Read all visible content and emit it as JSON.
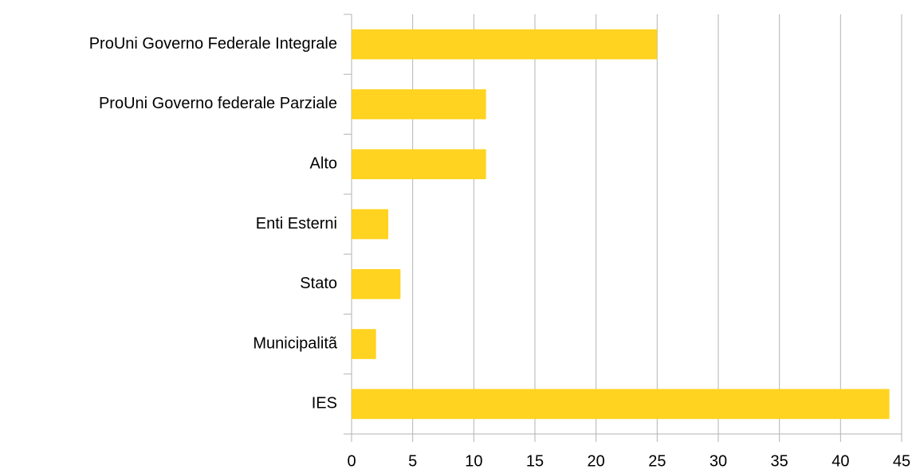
{
  "chart_data": {
    "type": "bar",
    "orientation": "horizontal",
    "categories": [
      "ProUni Governo Federale Integrale",
      "ProUni Governo federale Parziale",
      "Alto",
      "Enti Esterni",
      "Stato",
      "Municipalitã",
      "IES"
    ],
    "values": [
      25,
      11,
      11,
      3,
      4,
      2,
      44
    ],
    "color": "#ffd320",
    "xlim": [
      0,
      45
    ],
    "xticks": [
      0,
      5,
      10,
      15,
      20,
      25,
      30,
      35,
      40,
      45
    ],
    "grid": true
  }
}
